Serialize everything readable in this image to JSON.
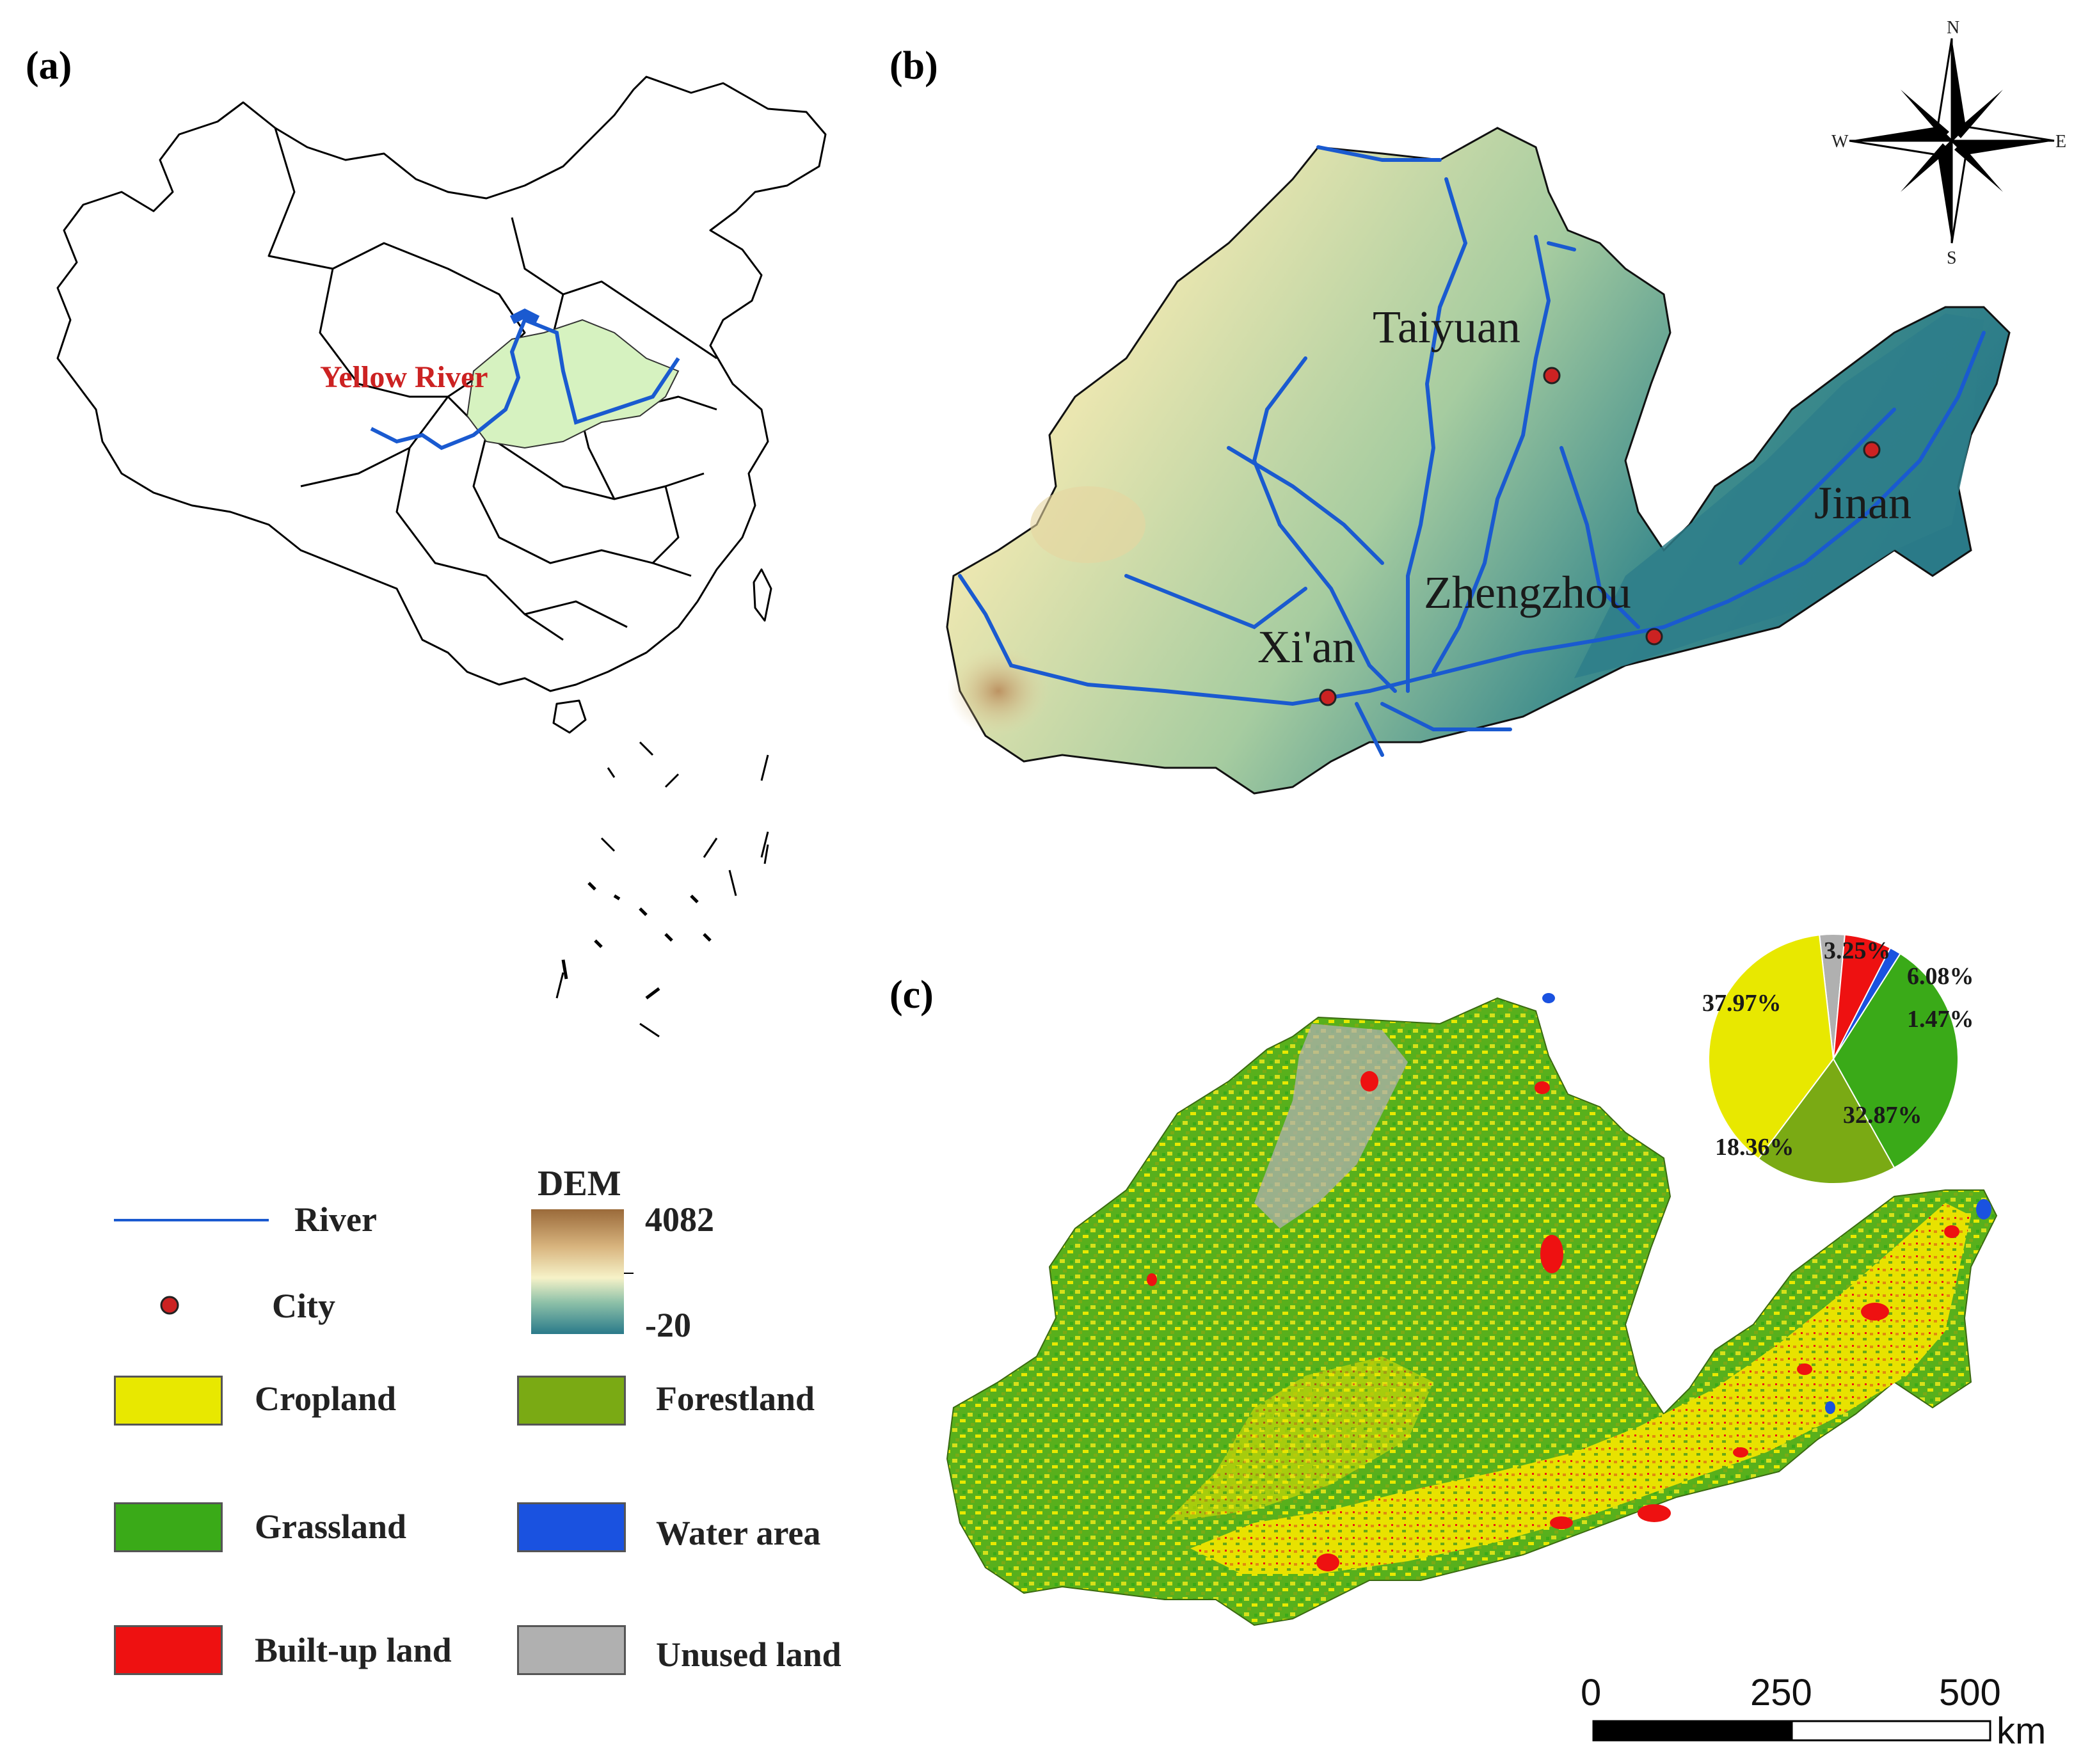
{
  "panels": {
    "a": {
      "label": "(a)",
      "river_label": "Yellow River"
    },
    "b": {
      "label": "(b)"
    },
    "c": {
      "label": "(c)"
    }
  },
  "cities": [
    {
      "name": "Taiyuan"
    },
    {
      "name": "Jinan"
    },
    {
      "name": "Zhengzhou"
    },
    {
      "name": "Xi'an"
    }
  ],
  "compass": {
    "n": "N",
    "s": "S",
    "e": "E",
    "w": "W"
  },
  "legend": {
    "river": "River",
    "city": "City",
    "dem_title": "DEM",
    "dem_max": "4082",
    "dem_min": "-20",
    "classes": [
      {
        "label": "Cropland",
        "color": "#e8e800"
      },
      {
        "label": "Forestland",
        "color": "#7aaa14"
      },
      {
        "label": "Grassland",
        "color": "#3aaa18"
      },
      {
        "label": "Water area",
        "color": "#1a52e0"
      },
      {
        "label": "Built-up land",
        "color": "#ee1111"
      },
      {
        "label": "Unused land",
        "color": "#b0b0b0"
      }
    ]
  },
  "pie": {
    "labels": {
      "cropland": "37.97%",
      "forestland": "18.36%",
      "grassland": "32.87%",
      "water": "1.47%",
      "builtup": "6.08%",
      "unused": "3.25%"
    },
    "chart_data": {
      "type": "pie",
      "categories": [
        "Cropland",
        "Forestland",
        "Grassland",
        "Water area",
        "Built-up land",
        "Unused land"
      ],
      "values": [
        37.97,
        18.36,
        32.87,
        1.47,
        6.08,
        3.25
      ]
    }
  },
  "scale": {
    "tick0": "0",
    "tick1": "250",
    "tick2": "500",
    "unit": "km"
  }
}
